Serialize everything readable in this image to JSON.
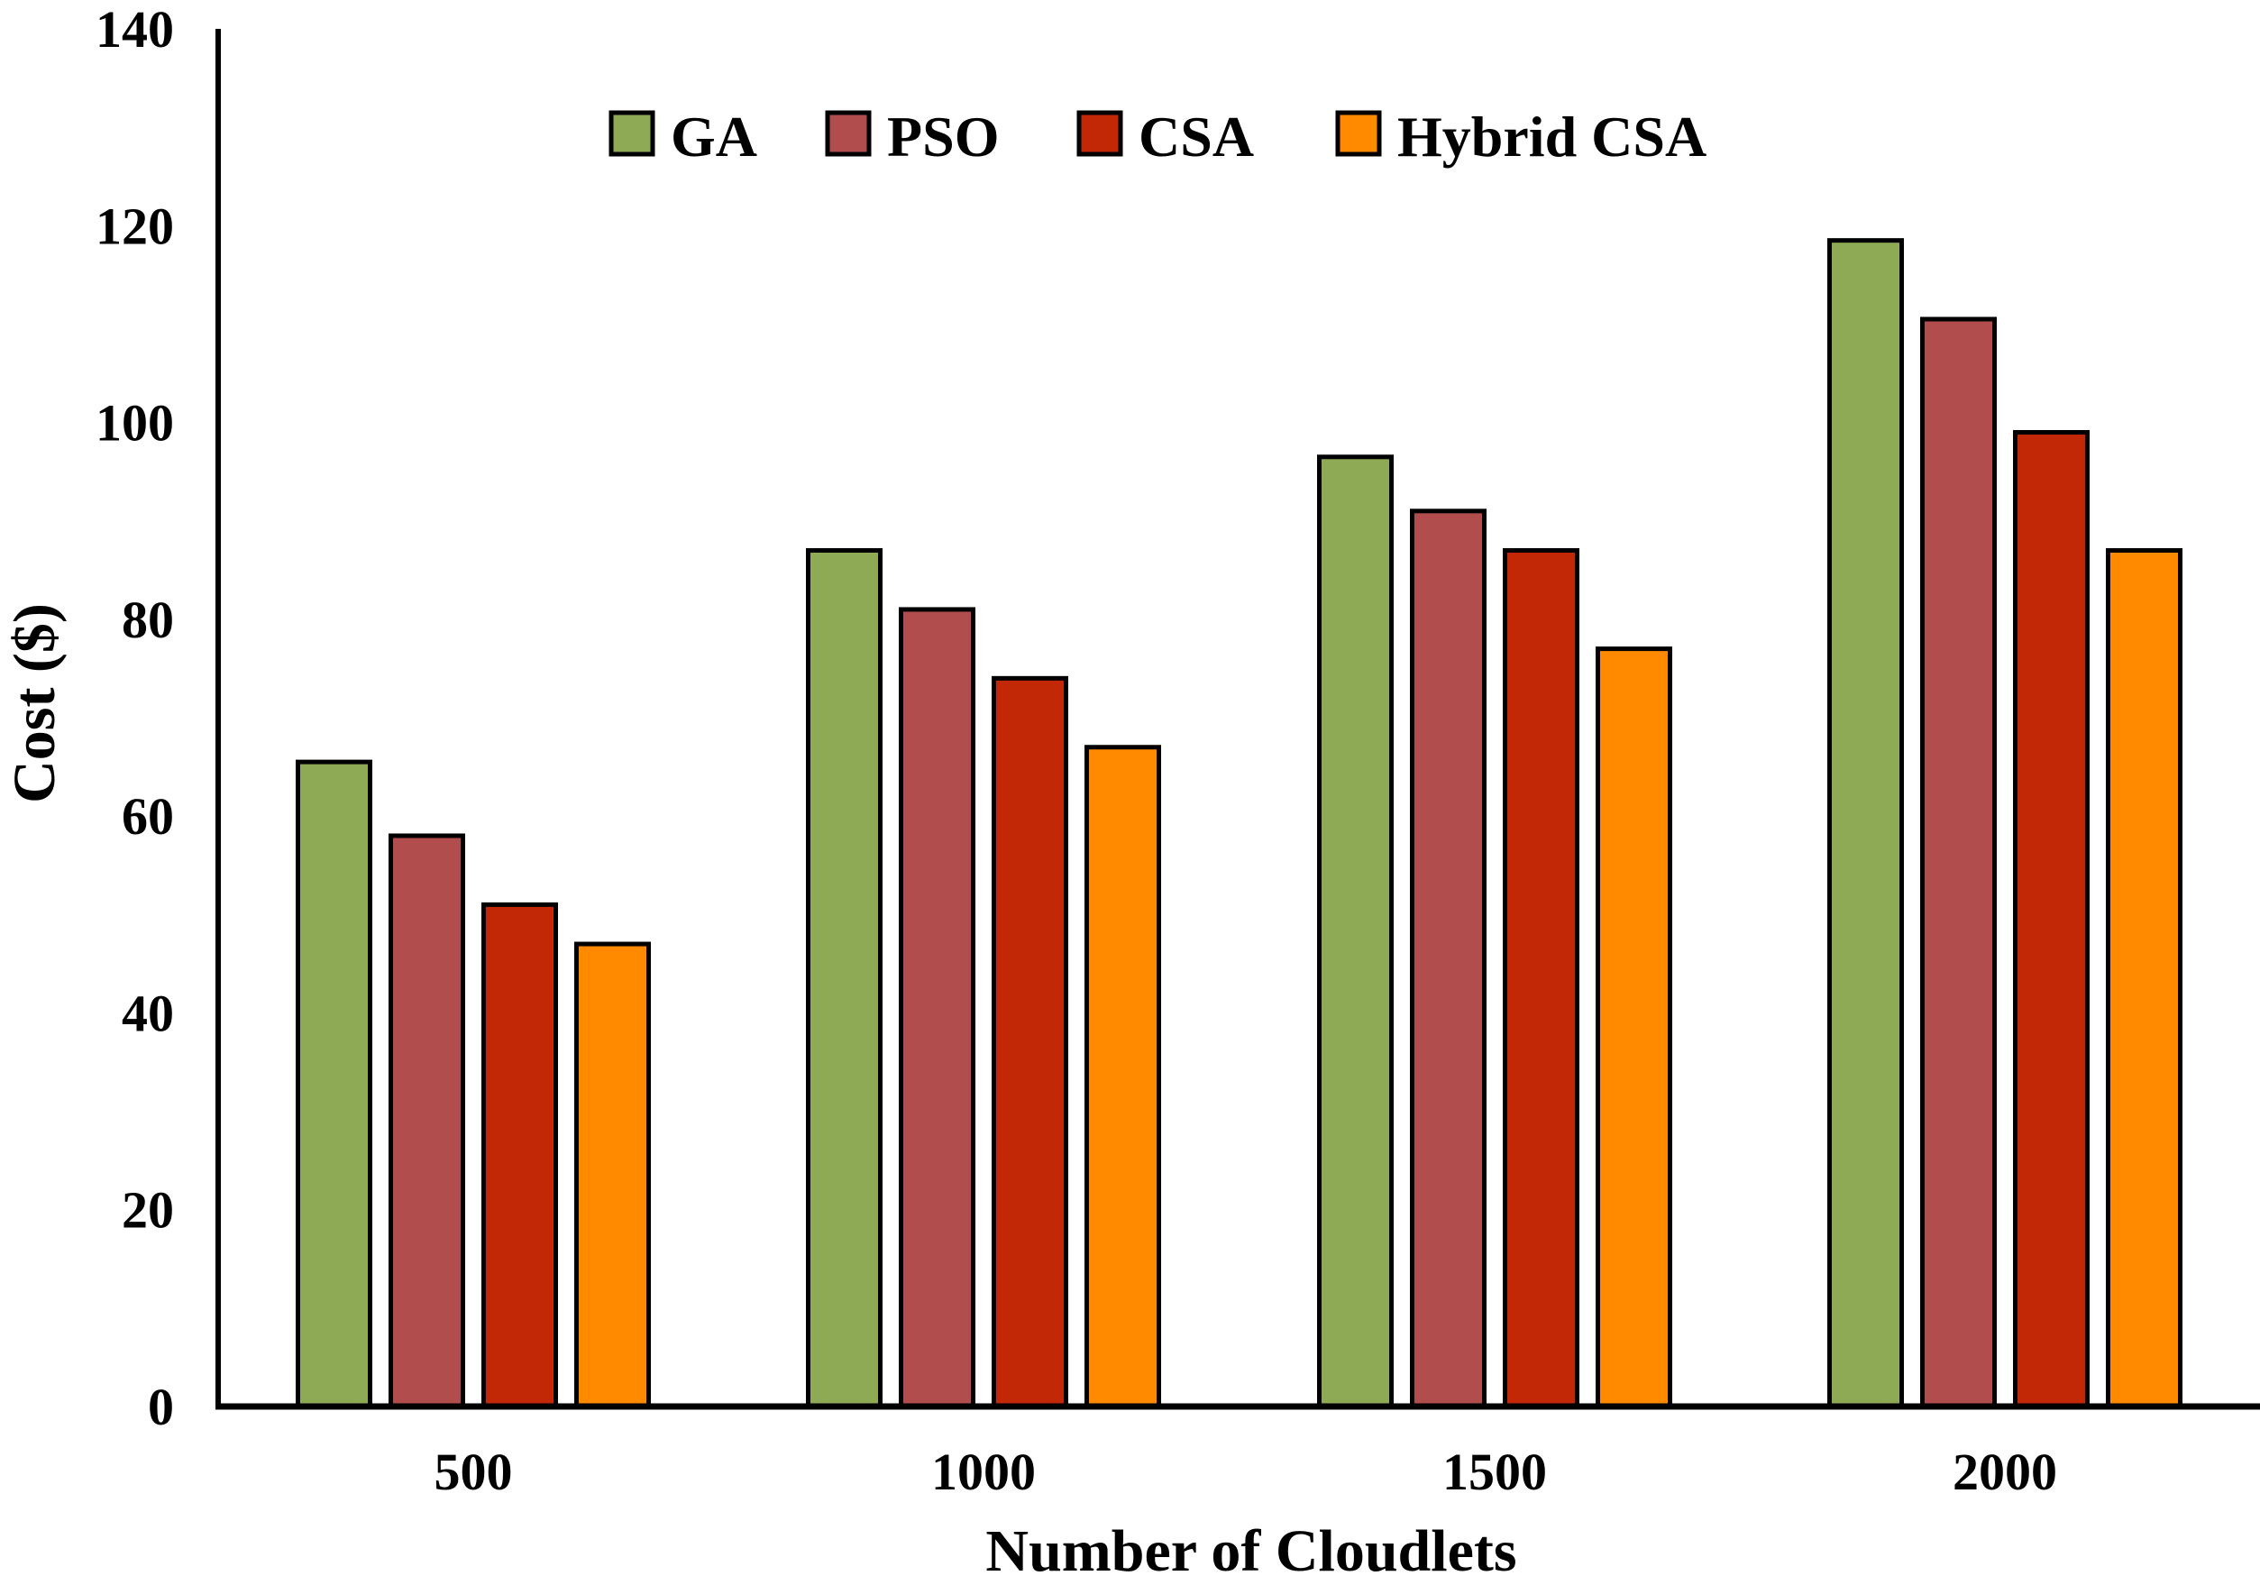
{
  "chart_data": {
    "type": "bar",
    "title": "",
    "xlabel": "Number of Cloudlets",
    "ylabel": "Cost ($)",
    "categories": [
      "500",
      "1000",
      "1500",
      "2000"
    ],
    "ylim": [
      0,
      140
    ],
    "yticks": [
      "0",
      "20",
      "40",
      "60",
      "80",
      "100",
      "120",
      "140"
    ],
    "grid": false,
    "legend_position": "top-center",
    "series": [
      {
        "name": "GA",
        "color": "#8faa54",
        "values": [
          65.5,
          87,
          96.5,
          118.5
        ]
      },
      {
        "name": "PSO",
        "color": "#b14d4c",
        "values": [
          58,
          81,
          91,
          110.5
        ]
      },
      {
        "name": "CSA",
        "color": "#c22806",
        "values": [
          51,
          74,
          87,
          99
        ]
      },
      {
        "name": "Hybrid CSA",
        "color": "#ff8a00",
        "values": [
          47,
          67,
          77,
          87
        ]
      }
    ]
  }
}
